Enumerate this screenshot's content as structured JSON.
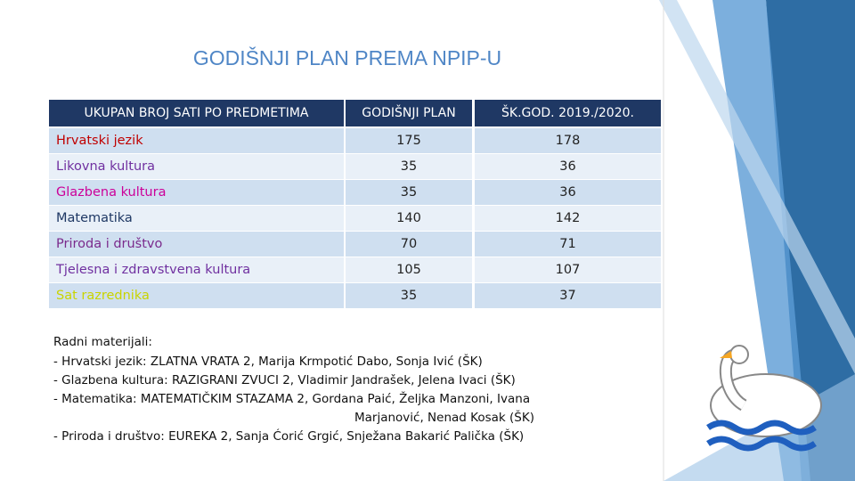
{
  "title": "GODIŠNJI PLAN PREMA NPIP-U",
  "table": {
    "header": [
      "UKUPAN BROJ SATI PO PREDMETIMA",
      "GODIŠNJI PLAN",
      "ŠK.GOD. 2019./2020."
    ],
    "rows": [
      {
        "subject": "Hrvatski jezik",
        "color": "#c00000",
        "plan": 175,
        "actual": 178
      },
      {
        "subject": "Likovna kultura",
        "color": "#7030a0",
        "plan": 35,
        "actual": 36
      },
      {
        "subject": "Glazbena kultura",
        "color": "#cc0099",
        "plan": 35,
        "actual": 36
      },
      {
        "subject": "Matematika",
        "color": "#1f3864",
        "plan": 140,
        "actual": 142
      },
      {
        "subject": "Priroda i društvo",
        "color": "#7a2a8c",
        "plan": 70,
        "actual": 71
      },
      {
        "subject": "Tjelesna i zdravstvena kultura",
        "color": "#7030a0",
        "plan": 105,
        "actual": 107
      },
      {
        "subject": "Sat razrednika",
        "color": "#c9d400",
        "plan": 35,
        "actual": 37
      }
    ]
  },
  "materials": {
    "heading": "Radni materijali:",
    "lines": [
      "- Hrvatski jezik: ZLATNA VRATA 2, Marija Krmpotić Dabo, Sonja Ivić (ŠK)",
      "- Glazbena kultura: RAZIGRANI ZVUCI 2, Vladimir Jandrašek, Jelena Ivaci (ŠK)",
      "- Matematika: MATEMATIČKIM STAZAMA 2, Gordana Paić, Željka Manzoni, Ivana",
      "Marjanović, Nenad Kosak (ŠK)",
      "- Priroda i društvo: EUREKA 2, Sanja Ćorić Grgić, Snježana Bakarić Palička (ŠK)"
    ]
  }
}
